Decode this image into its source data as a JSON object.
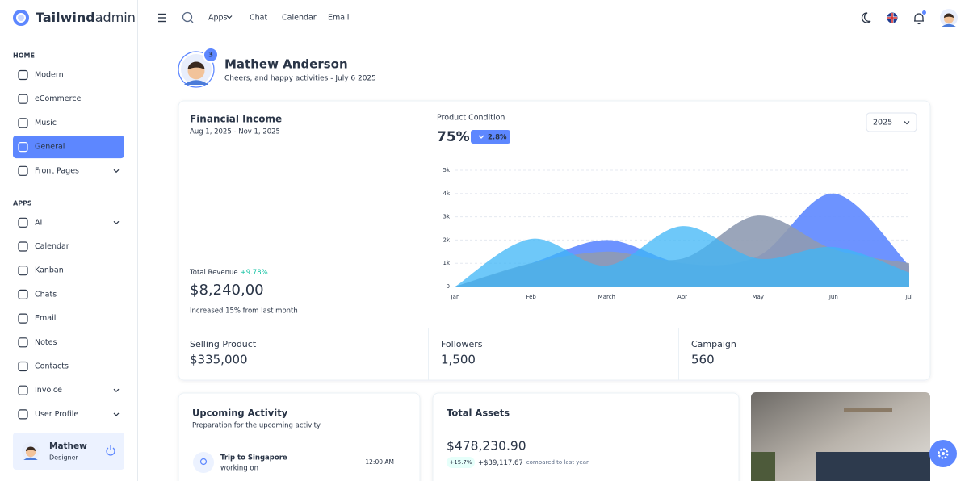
{
  "brand": {
    "name": "Tailwind",
    "suffix": "admin"
  },
  "sidebar": {
    "sections": [
      {
        "title": "HOME",
        "items": [
          "Modern",
          "eCommerce",
          "Music",
          "General",
          "Front Pages"
        ]
      },
      {
        "title": "APPS",
        "items": [
          "AI",
          "Calendar",
          "Kanban",
          "Chats",
          "Email",
          "Notes",
          "Contacts",
          "Invoice",
          "User Profile"
        ]
      }
    ],
    "user": {
      "name": "Mathew",
      "role": "Designer"
    }
  },
  "topnav": [
    "Apps",
    "Chat",
    "Calendar",
    "Email"
  ],
  "profile": {
    "name": "Mathew Anderson",
    "subtitle": "Cheers, and happy activities - July 6 2025",
    "badge": "3"
  },
  "income": {
    "title": "Financial Income",
    "range": "Aug 1, 2025 - Nov 1, 2025",
    "revenue_label": "Total Revenue",
    "revenue_change": "+9.78%",
    "revenue": "$8,240,00",
    "note": "Increased 15% from last month"
  },
  "chart_data": {
    "type": "area",
    "title": "Product Condition",
    "headline": "75%",
    "change": "2.8%",
    "year": "2025",
    "categories": [
      "Jan",
      "Feb",
      "March",
      "Apr",
      "May",
      "Jun",
      "Jul"
    ],
    "series": [
      {
        "color": "#5d87ff",
        "values": [
          0,
          1000,
          2000,
          1000,
          1300,
          4000,
          900
        ]
      },
      {
        "color": "#8f9bb3",
        "values": [
          0,
          1000,
          1500,
          1200,
          3050,
          1600,
          1000
        ]
      },
      {
        "color": "#3db5f7",
        "values": [
          0,
          2050,
          900,
          2600,
          1200,
          1700,
          600
        ]
      }
    ],
    "ylim": [
      0,
      5000
    ],
    "yticks": [
      0,
      {
        "value": 1000,
        "label": "1k"
      },
      {
        "value": 2000,
        "label": "2k"
      },
      {
        "value": 3000,
        "label": "3k"
      },
      {
        "value": 4000,
        "label": "4k"
      },
      {
        "value": 5000,
        "label": "5k"
      }
    ],
    "grid": true
  },
  "stats": [
    {
      "label": "Selling Product",
      "value": "$335,000",
      "color": "#5d87ff"
    },
    {
      "label": "Followers",
      "value": "1,500",
      "color": "#3ba8f0"
    },
    {
      "label": "Campaign",
      "value": "560",
      "color": "#13c2a3"
    }
  ],
  "activity": {
    "title": "Upcoming Activity",
    "subtitle": "Preparation for the upcoming activity",
    "items": [
      {
        "title": "Trip to Singapore",
        "subtitle": "working on",
        "time": "12:00 AM"
      }
    ]
  },
  "assets": {
    "title": "Total Assets",
    "value": "$478,230.90",
    "change": "+15.7%",
    "delta": "+$39,117.67",
    "note": "compared to last year"
  }
}
